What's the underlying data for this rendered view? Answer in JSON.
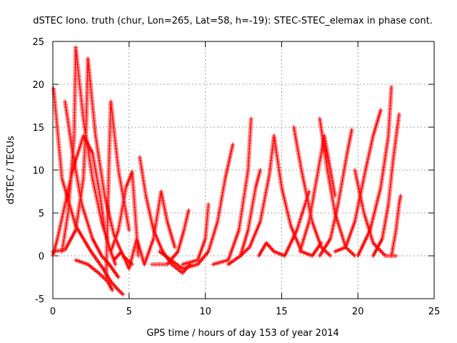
{
  "chart_data": {
    "type": "scatter",
    "title": "dSTEC Iono. truth (chur, Lon=265, Lat=58, h=-19): STEC-STEC_elemax in phase cont.",
    "xlabel": "GPS time / hours of day 153 of year 2014",
    "ylabel": "dSTEC  / TECUs",
    "xlim": [
      0,
      25
    ],
    "ylim": [
      -5,
      25
    ],
    "xticks": [
      0,
      5,
      10,
      15,
      20,
      25
    ],
    "yticks": [
      -5,
      0,
      5,
      10,
      15,
      20,
      25
    ],
    "grid": true,
    "marker": "+",
    "series_color": "#ff0000",
    "arcs": [
      {
        "x": [
          0.05,
          0.6,
          1.5,
          2.5,
          3.3,
          3.8,
          4.3,
          4.6
        ],
        "y": [
          19.5,
          9.0,
          3.5,
          0.5,
          -1.5,
          -3.0,
          -4.0,
          -4.5
        ]
      },
      {
        "x": [
          0.0,
          0.3,
          0.8,
          1.3,
          2.0,
          2.6,
          3.1,
          3.4
        ],
        "y": [
          0.0,
          2.0,
          6.0,
          10.0,
          14.0,
          12.0,
          7.0,
          3.0
        ]
      },
      {
        "x": [
          0.8,
          1.3,
          1.9,
          2.6,
          3.2,
          3.7,
          4.3
        ],
        "y": [
          18.0,
          12.0,
          6.0,
          2.0,
          0.0,
          -1.0,
          -2.5
        ]
      },
      {
        "x": [
          0.6,
          1.0,
          1.4,
          1.5
        ],
        "y": [
          0.5,
          5.0,
          14.0,
          24.3
        ]
      },
      {
        "x": [
          1.5,
          2.0,
          2.6,
          3.2,
          3.7,
          4.1
        ],
        "y": [
          24.3,
          16.0,
          9.0,
          4.0,
          1.0,
          -1.0
        ]
      },
      {
        "x": [
          0.0,
          0.8,
          1.5,
          2.0,
          2.2,
          2.3
        ],
        "y": [
          0.5,
          0.7,
          3.0,
          9.0,
          16.0,
          23.0
        ]
      },
      {
        "x": [
          2.3,
          2.8,
          3.4,
          4.0,
          4.6,
          5.2
        ],
        "y": [
          23.0,
          14.0,
          7.0,
          2.5,
          0.0,
          -1.0
        ]
      },
      {
        "x": [
          1.5,
          2.3,
          3.0,
          3.6,
          3.9
        ],
        "y": [
          -0.5,
          -1.0,
          -2.0,
          -3.0,
          -4.0
        ]
      },
      {
        "x": [
          3.5,
          3.6,
          3.7,
          3.8,
          4.3,
          5.0
        ],
        "y": [
          -2.5,
          5.0,
          12.0,
          18.0,
          10.0,
          3.0
        ]
      },
      {
        "x": [
          3.8,
          4.3,
          4.8,
          5.2,
          5.6
        ],
        "y": [
          0.5,
          3.0,
          8.0,
          9.8,
          0.0
        ]
      },
      {
        "x": [
          4.0,
          4.5,
          5.0,
          5.5,
          6.0
        ],
        "y": [
          -0.5,
          0.5,
          -1.5,
          2.0,
          -1.0
        ]
      },
      {
        "x": [
          5.7,
          6.1,
          6.6,
          7.2,
          7.8,
          8.5,
          9.0
        ],
        "y": [
          11.5,
          7.0,
          3.0,
          0.5,
          -1.0,
          -2.0,
          -1.0
        ]
      },
      {
        "x": [
          6.0,
          6.6,
          7.1,
          7.5,
          8.0
        ],
        "y": [
          -1.0,
          2.0,
          7.5,
          4.0,
          1.0
        ]
      },
      {
        "x": [
          6.5,
          7.5,
          8.2,
          8.6,
          8.9
        ],
        "y": [
          -1.0,
          -1.0,
          0.5,
          3.0,
          5.3
        ]
      },
      {
        "x": [
          7.0,
          8.5,
          9.5,
          10.2,
          10.8,
          11.3,
          11.8
        ],
        "y": [
          0.5,
          -1.5,
          -1.0,
          0.5,
          4.0,
          9.0,
          13.0
        ]
      },
      {
        "x": [
          8.5,
          9.5,
          10.0,
          10.2
        ],
        "y": [
          -1.0,
          -0.5,
          2.0,
          6.0
        ]
      },
      {
        "x": [
          10.5,
          11.5,
          12.2,
          12.8,
          13.0
        ],
        "y": [
          -1.0,
          -0.5,
          3.0,
          10.0,
          16.0
        ]
      },
      {
        "x": [
          11.5,
          12.3,
          12.8,
          13.3,
          13.6
        ],
        "y": [
          -1.0,
          0.0,
          3.0,
          8.0,
          10.0
        ]
      },
      {
        "x": [
          12.3,
          12.9,
          13.6,
          14.2,
          14.5
        ],
        "y": [
          0.0,
          1.0,
          4.0,
          9.5,
          14.0
        ]
      },
      {
        "x": [
          14.5,
          15.0,
          15.6,
          16.3,
          17.0,
          17.6
        ],
        "y": [
          14.0,
          8.0,
          3.5,
          0.5,
          0.0,
          1.5
        ]
      },
      {
        "x": [
          13.5,
          14.0,
          14.5,
          15.2,
          16.0,
          16.8
        ],
        "y": [
          0.0,
          1.5,
          0.5,
          0.0,
          3.0,
          7.5
        ]
      },
      {
        "x": [
          15.8,
          16.3,
          17.0,
          17.6,
          18.2
        ],
        "y": [
          15.0,
          10.0,
          4.0,
          1.0,
          0.0
        ]
      },
      {
        "x": [
          16.2,
          16.8,
          17.3,
          17.8,
          18.5
        ],
        "y": [
          0.5,
          4.0,
          9.0,
          14.0,
          7.0
        ]
      },
      {
        "x": [
          17.5,
          18.0,
          18.5,
          19.2,
          19.8
        ],
        "y": [
          16.0,
          10.0,
          5.0,
          1.0,
          0.0
        ]
      },
      {
        "x": [
          17.5,
          18.2,
          18.7,
          19.3,
          19.6
        ],
        "y": [
          0.0,
          2.0,
          6.0,
          12.0,
          14.7
        ]
      },
      {
        "x": [
          18.5,
          19.2,
          19.8,
          20.5,
          21.0,
          21.5
        ],
        "y": [
          0.5,
          1.0,
          4.0,
          10.0,
          14.0,
          17.0
        ]
      },
      {
        "x": [
          19.8,
          20.4,
          21.0,
          21.8,
          22.5
        ],
        "y": [
          10.0,
          5.0,
          1.5,
          0.0,
          0.0
        ]
      },
      {
        "x": [
          20.0,
          20.8,
          21.5,
          22.0,
          22.2
        ],
        "y": [
          0.0,
          3.0,
          8.0,
          14.0,
          19.7
        ]
      },
      {
        "x": [
          21.0,
          21.6,
          22.0,
          22.3,
          22.7
        ],
        "y": [
          0.0,
          2.0,
          6.0,
          11.0,
          16.5
        ]
      },
      {
        "x": [
          22.2,
          22.5,
          22.7,
          22.8
        ],
        "y": [
          0.0,
          3.0,
          6.0,
          7.0
        ]
      }
    ]
  }
}
